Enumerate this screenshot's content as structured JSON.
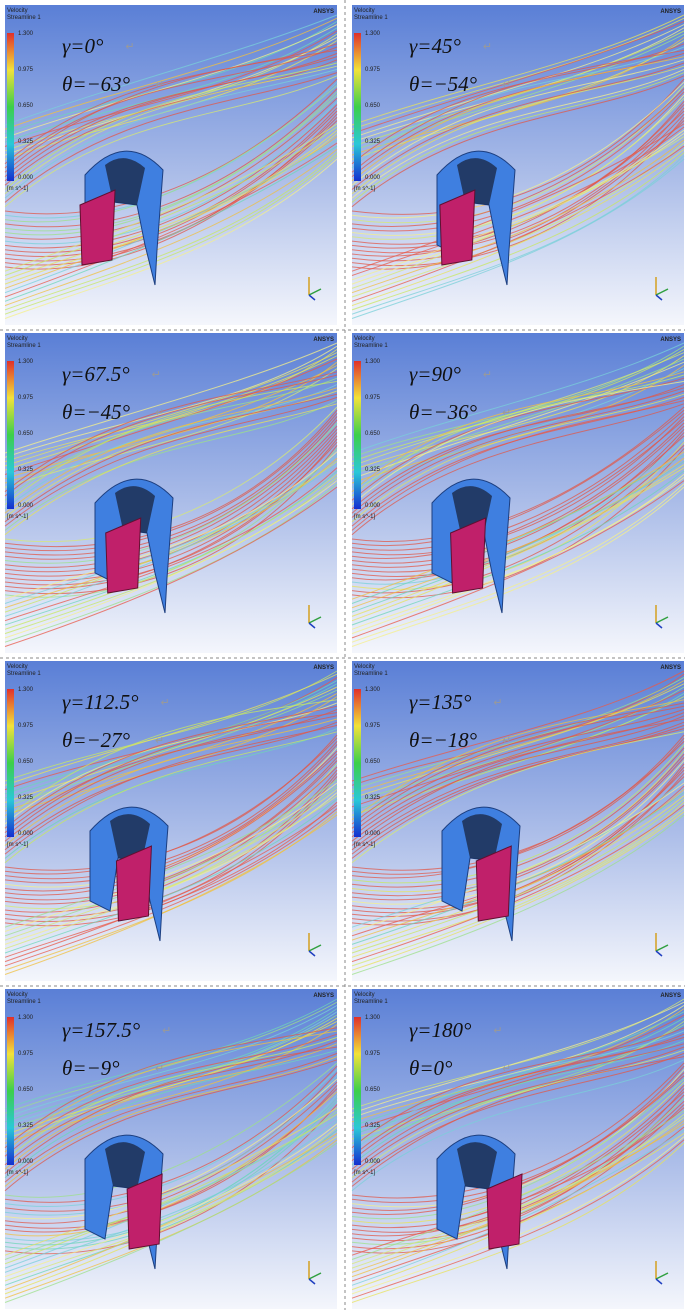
{
  "figure": {
    "panels": [
      {
        "gamma": "γ=0°",
        "theta": "θ=−63°"
      },
      {
        "gamma": "γ=45°",
        "theta": "θ=−54°"
      },
      {
        "gamma": "γ=67.5°",
        "theta": "θ=−45°"
      },
      {
        "gamma": "γ=90°",
        "theta": "θ=−36°"
      },
      {
        "gamma": "γ=112.5°",
        "theta": "θ=−27°"
      },
      {
        "gamma": "γ=135°",
        "theta": "θ=−18°"
      },
      {
        "gamma": "γ=157.5°",
        "theta": "θ=−9°"
      },
      {
        "gamma": "γ=180°",
        "theta": "θ=0°"
      }
    ],
    "legend": {
      "title": "Velocity",
      "subtitle": "Streamline 1",
      "ticks": [
        "1.300",
        "0.975",
        "0.650",
        "0.325",
        "0.000"
      ],
      "unit": "[m s^-1]"
    },
    "brand": "ANSYS",
    "return_mark": "↵"
  }
}
